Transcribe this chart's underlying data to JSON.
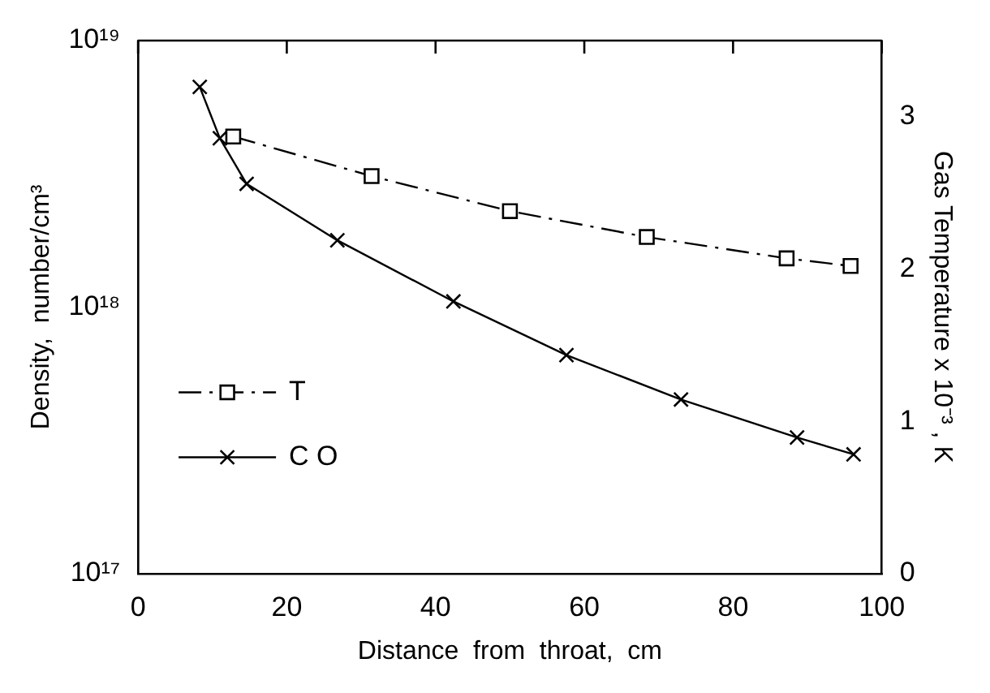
{
  "chart_data": {
    "type": "line",
    "xlabel": "Distance  from  throat,  cm",
    "ylabel": "Density,  number/cm³",
    "y2label": "Gas Temperature x 10⁻³ , K",
    "xlim": [
      0,
      100
    ],
    "xticks": [
      0,
      20,
      40,
      60,
      80,
      100
    ],
    "ylim": [
      1e+17,
      1e+19
    ],
    "yticks": [
      {
        "value": 1e+17,
        "label": "10¹⁷"
      },
      {
        "value": 1e+18,
        "label": "10¹⁸"
      },
      {
        "value": 1e+19,
        "label": "10¹⁹"
      }
    ],
    "y2lim": [
      0,
      3.5
    ],
    "y2ticks": [
      0,
      1,
      2,
      3
    ],
    "log": "y",
    "grid": false,
    "legend": "left",
    "series": [
      {
        "name": "T",
        "color": "#000000",
        "axis": "y2",
        "marker": "square",
        "line_style": "dashed",
        "x": [
          12.8,
          31.4,
          50.0,
          68.4,
          87.2,
          95.8
        ],
        "values": [
          2.87,
          2.61,
          2.38,
          2.21,
          2.07,
          2.02
        ]
      },
      {
        "name": "C O",
        "color": "#000000",
        "axis": "y",
        "marker": "cross",
        "line_style": "solid",
        "x": [
          8.3,
          11.0,
          14.6,
          26.8,
          42.4,
          57.6,
          73.0,
          88.6,
          96.2
        ],
        "values": [
          6.7e+18,
          4.3e+18,
          2.9e+18,
          1.78e+18,
          1.05e+18,
          6.6e+17,
          4.5e+17,
          3.24e+17,
          2.8e+17
        ]
      }
    ]
  }
}
